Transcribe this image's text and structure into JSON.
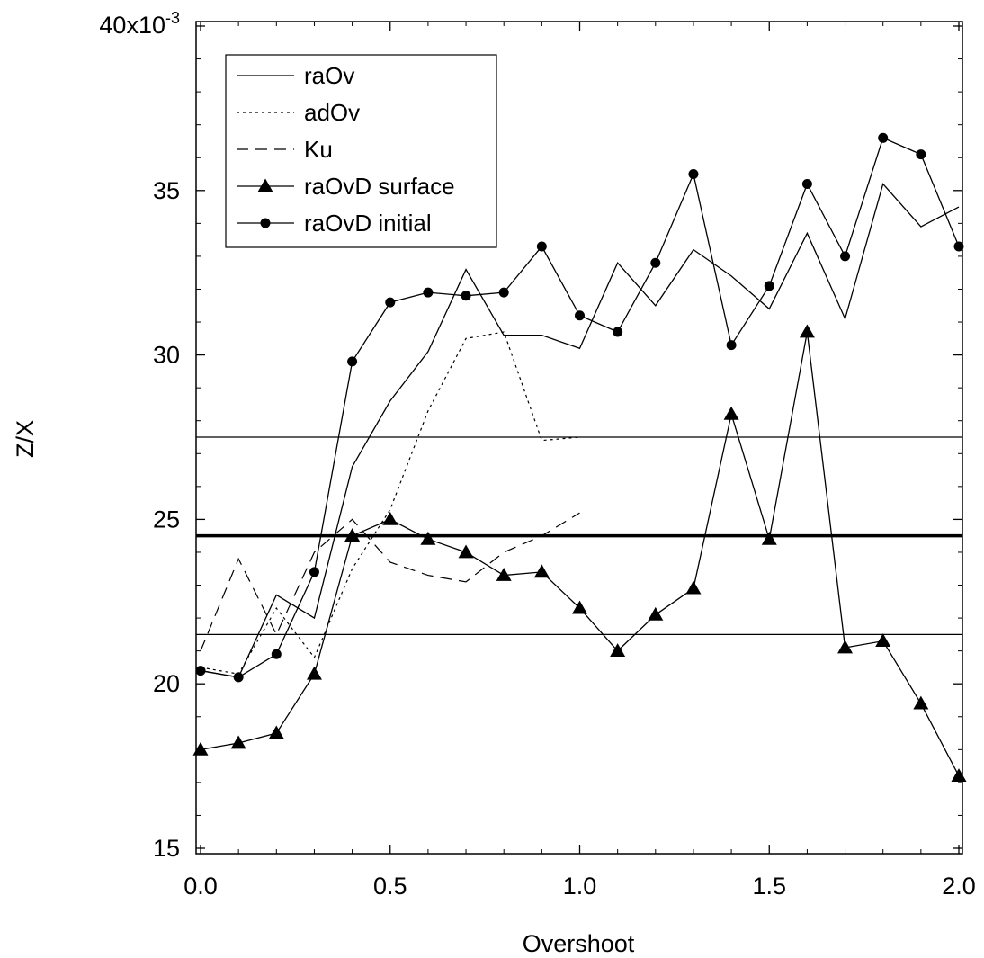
{
  "chart_data": {
    "type": "line",
    "title": "",
    "xlabel": "Overshoot",
    "ylabel": "Z/X",
    "xlim": [
      0,
      2
    ],
    "ylim": [
      0.015,
      0.04
    ],
    "x_ticks": [
      "0.0",
      "0.5",
      "1.0",
      "1.5",
      "2.0"
    ],
    "x_tick_values": [
      0,
      0.5,
      1.0,
      1.5,
      2.0
    ],
    "y_ticks": [
      "15",
      "20",
      "25",
      "30",
      "35"
    ],
    "y_tick_values": [
      0.015,
      0.02,
      0.025,
      0.03,
      0.035
    ],
    "y_top_tick_label": "40x10",
    "y_top_tick_exponent": "-3",
    "y_top_tick_value": 0.04,
    "legend_position": "top-left",
    "grid": false,
    "reference_lines": [
      {
        "y": 0.0275,
        "style": "thin"
      },
      {
        "y": 0.0245,
        "style": "thick"
      },
      {
        "y": 0.0215,
        "style": "thin"
      }
    ],
    "series": [
      {
        "name": "raOv",
        "style": "solid",
        "marker": "none",
        "x": [
          0,
          0.1,
          0.2,
          0.3,
          0.4,
          0.5,
          0.6,
          0.7,
          0.8,
          0.9,
          1.0,
          1.1,
          1.2,
          1.3,
          1.4,
          1.5,
          1.6,
          1.7,
          1.8,
          1.9,
          2.0
        ],
        "y": [
          0.0204,
          0.0202,
          0.0227,
          0.022,
          0.0266,
          0.0286,
          0.0301,
          0.0326,
          0.0306,
          0.0306,
          0.0302,
          0.0328,
          0.0315,
          0.0332,
          0.0324,
          0.0314,
          0.0337,
          0.0311,
          0.0352,
          0.0339,
          0.0345
        ]
      },
      {
        "name": "adOv",
        "style": "dotted",
        "marker": "none",
        "x": [
          0,
          0.1,
          0.2,
          0.3,
          0.4,
          0.5,
          0.6,
          0.7,
          0.8,
          0.9,
          1.0
        ],
        "y": [
          0.0205,
          0.0203,
          0.0223,
          0.0208,
          0.0235,
          0.0253,
          0.0283,
          0.0305,
          0.0307,
          0.0274,
          0.0275
        ]
      },
      {
        "name": "Ku",
        "style": "dashed",
        "marker": "none",
        "x": [
          0,
          0.1,
          0.2,
          0.3,
          0.4,
          0.5,
          0.6,
          0.7,
          0.8,
          0.9,
          1.0
        ],
        "y": [
          0.021,
          0.0238,
          0.0215,
          0.024,
          0.025,
          0.0237,
          0.0233,
          0.0231,
          0.024,
          0.0245,
          0.0252
        ]
      },
      {
        "name": "raOvD surface",
        "style": "solid",
        "marker": "triangle",
        "x": [
          0,
          0.1,
          0.2,
          0.3,
          0.4,
          0.5,
          0.6,
          0.7,
          0.8,
          0.9,
          1.0,
          1.1,
          1.2,
          1.3,
          1.4,
          1.5,
          1.6,
          1.7,
          1.8,
          1.9,
          2.0
        ],
        "y": [
          0.018,
          0.0182,
          0.0185,
          0.0203,
          0.0245,
          0.025,
          0.0244,
          0.024,
          0.0233,
          0.0234,
          0.0223,
          0.021,
          0.0221,
          0.0229,
          0.0282,
          0.0244,
          0.0307,
          0.0211,
          0.0213,
          0.0194,
          0.0172
        ]
      },
      {
        "name": "raOvD initial",
        "style": "solid",
        "marker": "circle",
        "x": [
          0,
          0.1,
          0.2,
          0.3,
          0.4,
          0.5,
          0.6,
          0.7,
          0.8,
          0.9,
          1.0,
          1.1,
          1.2,
          1.3,
          1.4,
          1.5,
          1.6,
          1.7,
          1.8,
          1.9,
          2.0
        ],
        "y": [
          0.0204,
          0.0202,
          0.0209,
          0.0234,
          0.0298,
          0.0316,
          0.0319,
          0.0318,
          0.0319,
          0.0333,
          0.0312,
          0.0307,
          0.0328,
          0.0355,
          0.0303,
          0.0321,
          0.0352,
          0.033,
          0.0366,
          0.0361,
          0.0333
        ]
      }
    ]
  }
}
